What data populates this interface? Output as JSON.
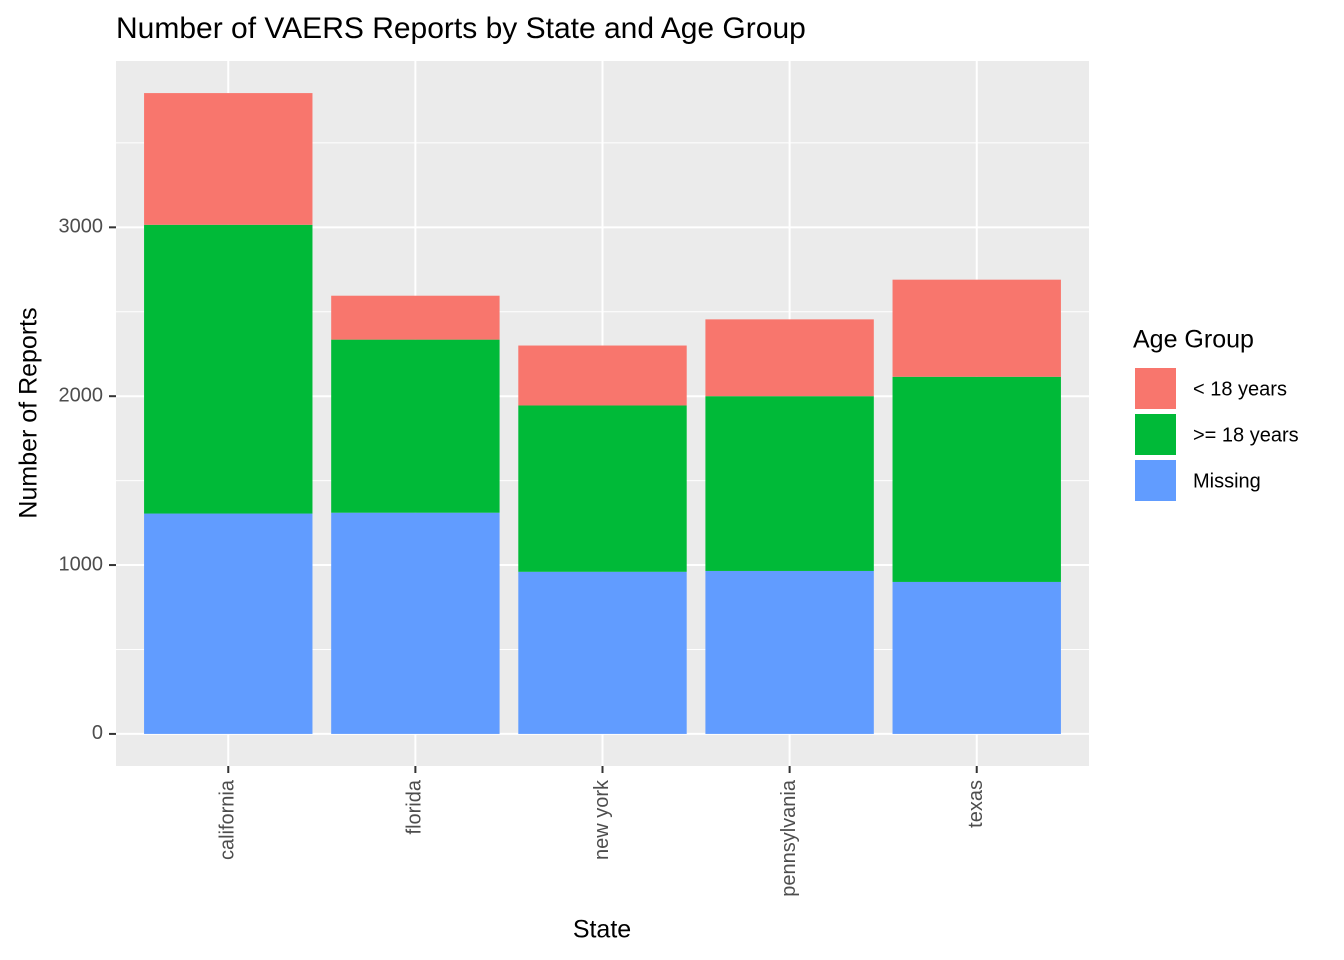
{
  "chart_data": {
    "type": "stacked-bar",
    "title": "Number of VAERS Reports by State and Age Group",
    "x_label": "State",
    "y_label": "Number of Reports",
    "legend_title": "Age Group",
    "legend_position": "right",
    "grid": true,
    "categories": [
      "california",
      "florida",
      "new york",
      "pennsylvania",
      "texas"
    ],
    "series": [
      {
        "name": "< 18 years",
        "color": "#f8766d",
        "values": [
          780,
          260,
          355,
          455,
          575
        ]
      },
      {
        "name": ">= 18 years",
        "color": "#00ba38",
        "values": [
          1710,
          1025,
          985,
          1035,
          1215
        ]
      },
      {
        "name": "Missing",
        "color": "#619cff",
        "values": [
          1305,
          1310,
          960,
          965,
          900
        ]
      }
    ],
    "ylim": [
      -190,
      3985
    ],
    "yticks": [
      0,
      1000,
      2000,
      3000
    ],
    "yminorticks": [
      500,
      1500,
      2500,
      3500
    ]
  }
}
